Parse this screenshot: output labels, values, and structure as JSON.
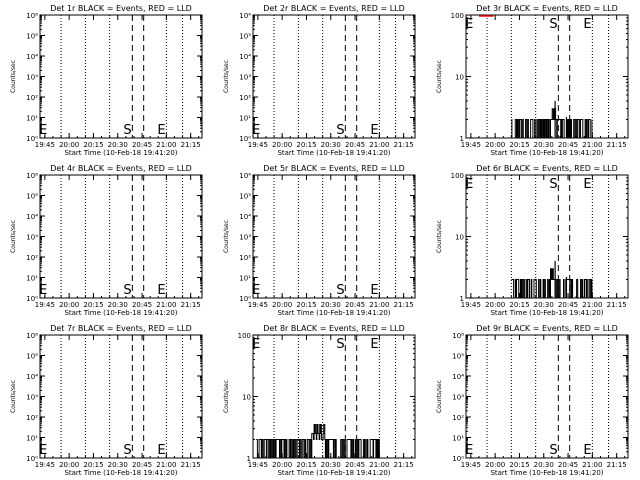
{
  "page": {
    "background": "#ffffff",
    "foreground": "#000000",
    "accent_red": "#ff0000"
  },
  "chart_data": [
    {
      "type": "line",
      "id": "det1",
      "title": "Det 1r BLACK = Events, RED = LLD",
      "xlabel": "Start Time (10-Feb-18 19:41:20)",
      "ylabel": "Counts/sec",
      "x_ticks": [
        "19:45",
        "20:00",
        "20:15",
        "20:30",
        "20:45",
        "21:00",
        "21:15"
      ],
      "y_scale": "log",
      "ylim": [
        1,
        1000000
      ],
      "y_ticks": [
        "10⁰",
        "10¹",
        "10²",
        "10³",
        "10⁴",
        "10⁵",
        "10⁶"
      ],
      "dashed_lines": [
        "20:39",
        "20:46"
      ],
      "dotted_lines": [
        "19:55",
        "20:10",
        "20:25",
        "21:00",
        "21:10"
      ],
      "markers": [
        {
          "label": "E",
          "x": "19:44"
        },
        {
          "label": "S",
          "x": "20:36"
        },
        {
          "label": "E",
          "x": "20:57"
        }
      ],
      "series": [],
      "red_line": null
    },
    {
      "type": "line",
      "id": "det2",
      "title": "Det 2r BLACK = Events, RED = LLD",
      "xlabel": "Start Time (10-Feb-18 19:41:20)",
      "ylabel": "Counts/sec",
      "x_ticks": [
        "19:45",
        "20:00",
        "20:15",
        "20:30",
        "20:45",
        "21:00",
        "21:15"
      ],
      "y_scale": "log",
      "ylim": [
        1,
        1000000
      ],
      "y_ticks": [
        "10⁰",
        "10¹",
        "10²",
        "10³",
        "10⁴",
        "10⁵",
        "10⁶"
      ],
      "dashed_lines": [
        "20:39",
        "20:46"
      ],
      "dotted_lines": [
        "19:55",
        "20:10",
        "20:25",
        "21:00",
        "21:10"
      ],
      "markers": [
        {
          "label": "E",
          "x": "19:44"
        },
        {
          "label": "S",
          "x": "20:36"
        },
        {
          "label": "E",
          "x": "20:57"
        }
      ],
      "series": [],
      "red_line": null
    },
    {
      "type": "line",
      "id": "det3",
      "title": "Det 3r BLACK = Events, RED = LLD",
      "xlabel": "Start Time (10-Feb-18 19:41:20)",
      "ylabel": "Counts/sec",
      "x_ticks": [
        "19:45",
        "20:00",
        "20:15",
        "20:30",
        "20:45",
        "21:00",
        "21:15"
      ],
      "y_scale": "log",
      "ylim": [
        1,
        100
      ],
      "y_ticks": [
        "1",
        "10",
        "100"
      ],
      "dashed_lines": [
        "20:39",
        "20:46"
      ],
      "dotted_lines": [
        "19:55",
        "20:10",
        "20:25",
        "21:00",
        "21:10"
      ],
      "markers": [
        {
          "label": "E",
          "x": "19:44"
        },
        {
          "label": "S",
          "x": "20:36"
        },
        {
          "label": "E",
          "x": "20:57"
        }
      ],
      "series": [
        {
          "color": "#000000",
          "profile": "events_a",
          "x_range": [
            "20:10",
            "21:00"
          ]
        }
      ],
      "red_line": {
        "x_range": [
          "19:50",
          "19:59"
        ],
        "y": 100
      }
    },
    {
      "type": "line",
      "id": "det4",
      "title": "Det 4r BLACK = Events, RED = LLD",
      "xlabel": "Start Time (10-Feb-18 19:41:20)",
      "ylabel": "Counts/sec",
      "x_ticks": [
        "19:45",
        "20:00",
        "20:15",
        "20:30",
        "20:45",
        "21:00",
        "21:15"
      ],
      "y_scale": "log",
      "ylim": [
        1,
        1000000
      ],
      "y_ticks": [
        "10⁰",
        "10¹",
        "10²",
        "10³",
        "10⁴",
        "10⁵",
        "10⁶"
      ],
      "dashed_lines": [
        "20:39",
        "20:46"
      ],
      "dotted_lines": [
        "19:55",
        "20:10",
        "20:25",
        "21:00",
        "21:10"
      ],
      "markers": [
        {
          "label": "E",
          "x": "19:44"
        },
        {
          "label": "S",
          "x": "20:36"
        },
        {
          "label": "E",
          "x": "20:57"
        }
      ],
      "series": [],
      "red_line": null
    },
    {
      "type": "line",
      "id": "det5",
      "title": "Det 5r BLACK = Events, RED = LLD",
      "xlabel": "Start Time (10-Feb-18 19:41:20)",
      "ylabel": "Counts/sec",
      "x_ticks": [
        "19:45",
        "20:00",
        "20:15",
        "20:30",
        "20:45",
        "21:00",
        "21:15"
      ],
      "y_scale": "log",
      "ylim": [
        1,
        1000000
      ],
      "y_ticks": [
        "10⁰",
        "10¹",
        "10²",
        "10³",
        "10⁴",
        "10⁵",
        "10⁶"
      ],
      "dashed_lines": [
        "20:39",
        "20:46"
      ],
      "dotted_lines": [
        "19:55",
        "20:10",
        "20:25",
        "21:00",
        "21:10"
      ],
      "markers": [
        {
          "label": "E",
          "x": "19:44"
        },
        {
          "label": "S",
          "x": "20:36"
        },
        {
          "label": "E",
          "x": "20:57"
        }
      ],
      "series": [],
      "red_line": null
    },
    {
      "type": "line",
      "id": "det6",
      "title": "Det 6r BLACK = Events, RED = LLD",
      "xlabel": "Start Time (10-Feb-18 19:41:20)",
      "ylabel": "Counts/sec",
      "x_ticks": [
        "19:45",
        "20:00",
        "20:15",
        "20:30",
        "20:45",
        "21:00",
        "21:15"
      ],
      "y_scale": "log",
      "ylim": [
        1,
        100
      ],
      "y_ticks": [
        "1",
        "10",
        "100"
      ],
      "dashed_lines": [
        "20:39",
        "20:46"
      ],
      "dotted_lines": [
        "19:55",
        "20:10",
        "20:25",
        "21:00",
        "21:10"
      ],
      "markers": [
        {
          "label": "E",
          "x": "19:44"
        },
        {
          "label": "S",
          "x": "20:36"
        },
        {
          "label": "E",
          "x": "20:57"
        }
      ],
      "series": [
        {
          "color": "#000000",
          "profile": "events_b",
          "x_range": [
            "20:10",
            "21:00"
          ]
        }
      ],
      "red_line": null
    },
    {
      "type": "line",
      "id": "det7",
      "title": "Det 7r BLACK = Events, RED = LLD",
      "xlabel": "Start Time (10-Feb-18 19:41:20)",
      "ylabel": "Counts/sec",
      "x_ticks": [
        "19:45",
        "20:00",
        "20:15",
        "20:30",
        "20:45",
        "21:00",
        "21:15"
      ],
      "y_scale": "log",
      "ylim": [
        1,
        1000000
      ],
      "y_ticks": [
        "10⁰",
        "10¹",
        "10²",
        "10³",
        "10⁴",
        "10⁵",
        "10⁶"
      ],
      "dashed_lines": [
        "20:39",
        "20:46"
      ],
      "dotted_lines": [
        "19:55",
        "20:10",
        "20:25",
        "21:00",
        "21:10"
      ],
      "markers": [
        {
          "label": "E",
          "x": "19:44"
        },
        {
          "label": "S",
          "x": "20:36"
        },
        {
          "label": "E",
          "x": "20:57"
        }
      ],
      "series": [],
      "red_line": null
    },
    {
      "type": "line",
      "id": "det8",
      "title": "Det 8r BLACK = Events, RED = LLD",
      "xlabel": "Start Time (10-Feb-18 19:41:20)",
      "ylabel": "Counts/sec",
      "x_ticks": [
        "19:45",
        "20:00",
        "20:15",
        "20:30",
        "20:45",
        "21:00",
        "21:15"
      ],
      "y_scale": "log",
      "ylim": [
        1,
        100
      ],
      "y_ticks": [
        "1",
        "10",
        "100"
      ],
      "dashed_lines": [
        "20:39",
        "20:46"
      ],
      "dotted_lines": [
        "19:55",
        "20:10",
        "20:25",
        "21:00",
        "21:10"
      ],
      "markers": [
        {
          "label": "E",
          "x": "19:44"
        },
        {
          "label": "S",
          "x": "20:36"
        },
        {
          "label": "E",
          "x": "20:57"
        }
      ],
      "series": [
        {
          "color": "#000000",
          "profile": "events_c",
          "x_range": [
            "19:44",
            "21:00"
          ]
        }
      ],
      "red_line": null
    },
    {
      "type": "line",
      "id": "det9",
      "title": "Det 9r BLACK = Events, RED = LLD",
      "xlabel": "Start Time (10-Feb-18 19:41:20)",
      "ylabel": "Counts/sec",
      "x_ticks": [
        "19:45",
        "20:00",
        "20:15",
        "20:30",
        "20:45",
        "21:00",
        "21:15"
      ],
      "y_scale": "log",
      "ylim": [
        1,
        1000000
      ],
      "y_ticks": [
        "10⁰",
        "10¹",
        "10²",
        "10³",
        "10⁴",
        "10⁵",
        "10⁶"
      ],
      "dashed_lines": [
        "20:39",
        "20:46"
      ],
      "dotted_lines": [
        "19:55",
        "20:10",
        "20:25",
        "21:00",
        "21:10"
      ],
      "markers": [
        {
          "label": "E",
          "x": "19:44"
        },
        {
          "label": "S",
          "x": "20:36"
        },
        {
          "label": "E",
          "x": "20:57"
        }
      ],
      "series": [],
      "red_line": null
    }
  ]
}
